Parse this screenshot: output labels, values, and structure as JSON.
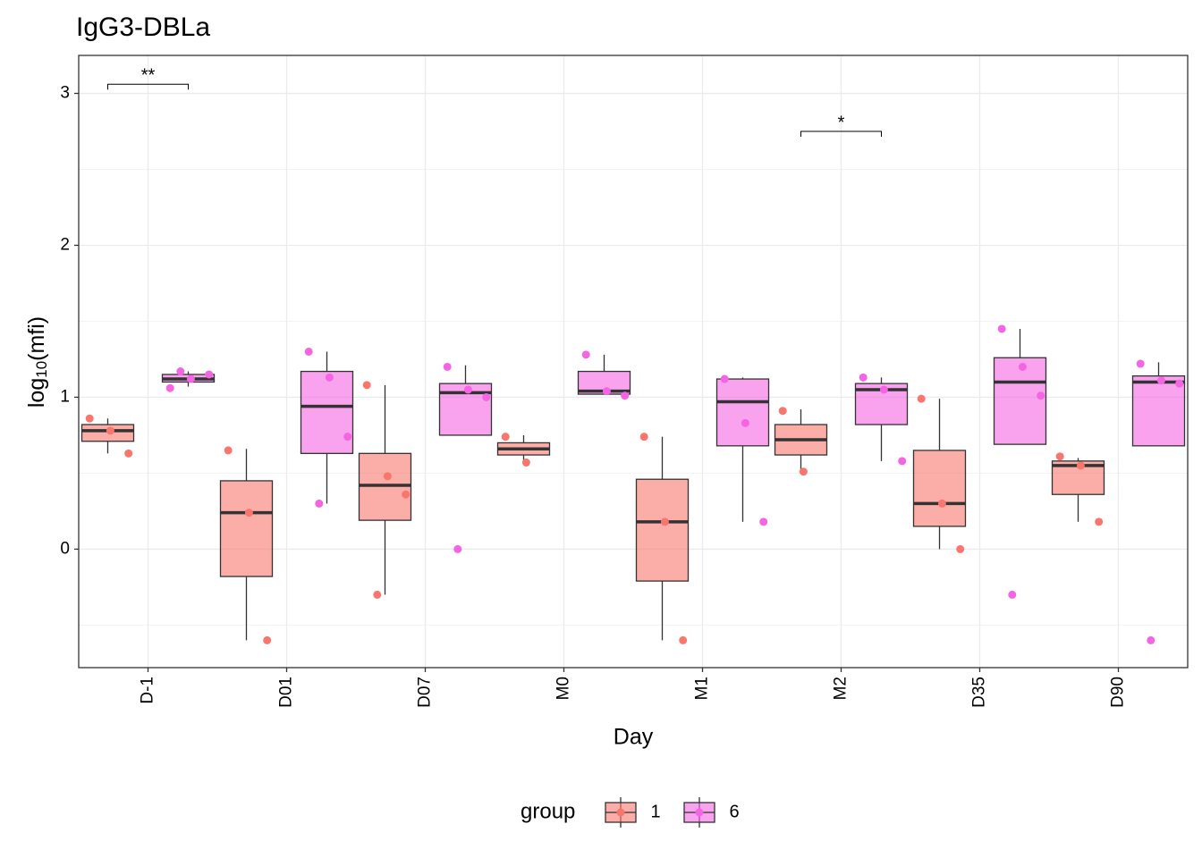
{
  "chart_data": {
    "type": "boxplot",
    "title": "IgG3-DBLa",
    "xlabel": "Day",
    "ylabel_parts": [
      "log",
      "10",
      "(mfi)"
    ],
    "categories": [
      "D-1",
      "D01",
      "D07",
      "M0",
      "M1",
      "M2",
      "D35",
      "D90"
    ],
    "ylim": [
      -0.78,
      3.25
    ],
    "yticks": [
      0,
      1,
      2,
      3
    ],
    "minor_yticks": [
      -0.5,
      0.5,
      1.5,
      2.5
    ],
    "grid": true,
    "legend_title": "group",
    "legend_position": "bottom",
    "series": [
      {
        "name": "1",
        "color": "#F8766D",
        "boxes": [
          {
            "min": 0.63,
            "q1": 0.71,
            "median": 0.78,
            "q3": 0.82,
            "max": 0.86,
            "points": [
              0.86,
              0.78,
              0.63
            ]
          },
          {
            "min": -0.6,
            "q1": -0.18,
            "median": 0.24,
            "q3": 0.45,
            "max": 0.66,
            "points": [
              0.65,
              0.24,
              -0.6
            ]
          },
          {
            "min": -0.3,
            "q1": 0.19,
            "median": 0.42,
            "q3": 0.63,
            "max": 1.08,
            "points": [
              1.08,
              0.48,
              0.36,
              -0.3
            ]
          },
          {
            "min": 0.58,
            "q1": 0.62,
            "median": 0.66,
            "q3": 0.7,
            "max": 0.75,
            "points": [
              0.74,
              0.57
            ]
          },
          {
            "min": -0.6,
            "q1": -0.21,
            "median": 0.18,
            "q3": 0.46,
            "max": 0.74,
            "points": [
              0.74,
              0.18,
              -0.6
            ]
          },
          {
            "min": 0.51,
            "q1": 0.62,
            "median": 0.72,
            "q3": 0.82,
            "max": 0.92,
            "points": [
              0.91,
              0.51
            ]
          },
          {
            "min": 0,
            "q1": 0.15,
            "median": 0.3,
            "q3": 0.65,
            "max": 0.99,
            "points": [
              0.99,
              0.3,
              0
            ]
          },
          {
            "min": 0.18,
            "q1": 0.36,
            "median": 0.55,
            "q3": 0.58,
            "max": 0.6,
            "points": [
              0.61,
              0.55,
              0.18
            ]
          }
        ]
      },
      {
        "name": "6",
        "color": "#F564E3",
        "boxes": [
          {
            "min": 1.07,
            "q1": 1.1,
            "median": 1.12,
            "q3": 1.15,
            "max": 1.17,
            "points": [
              1.06,
              1.12,
              1.15,
              1.17
            ]
          },
          {
            "min": 0.3,
            "q1": 0.63,
            "median": 0.94,
            "q3": 1.17,
            "max": 1.3,
            "points": [
              1.3,
              1.13,
              0.74,
              0.3
            ]
          },
          {
            "min": 0.75,
            "q1": 0.75,
            "median": 1.03,
            "q3": 1.09,
            "max": 1.21,
            "points": [
              1.2,
              1.05,
              1.0,
              0
            ]
          },
          {
            "min": 1.02,
            "q1": 1.02,
            "median": 1.04,
            "q3": 1.17,
            "max": 1.28,
            "points": [
              1.28,
              1.04,
              1.01
            ]
          },
          {
            "min": 0.18,
            "q1": 0.68,
            "median": 0.97,
            "q3": 1.12,
            "max": 1.13,
            "points": [
              1.12,
              0.83,
              0.18
            ]
          },
          {
            "min": 0.58,
            "q1": 0.82,
            "median": 1.05,
            "q3": 1.09,
            "max": 1.13,
            "points": [
              1.13,
              1.05,
              0.58
            ]
          },
          {
            "min": 0.69,
            "q1": 0.69,
            "median": 1.1,
            "q3": 1.26,
            "max": 1.45,
            "points": [
              1.45,
              1.2,
              1.01,
              -0.3
            ]
          },
          {
            "min": 0.68,
            "q1": 0.68,
            "median": 1.1,
            "q3": 1.14,
            "max": 1.23,
            "points": [
              1.22,
              1.11,
              1.09,
              -0.6
            ]
          }
        ]
      }
    ],
    "annotations": [
      {
        "label": "**",
        "category": "D-1",
        "y": 3.06
      },
      {
        "label": "*",
        "category": "M2",
        "y": 2.75
      }
    ]
  }
}
